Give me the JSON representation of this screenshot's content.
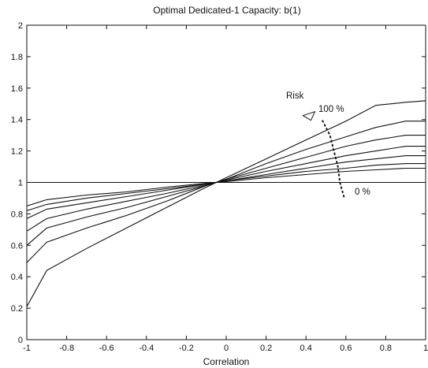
{
  "chart_data": {
    "type": "line",
    "title": "Optimal Dedicated-1 Capacity: b(1)",
    "xlabel": "Correlation",
    "ylabel": "",
    "xlim": [
      -1,
      1
    ],
    "ylim": [
      0,
      2
    ],
    "xticks": [
      -1,
      -0.8,
      -0.6,
      -0.4,
      -0.2,
      0,
      0.2,
      0.4,
      0.6,
      0.8,
      1
    ],
    "yticks": [
      0,
      0.2,
      0.4,
      0.6,
      0.8,
      1,
      1.2,
      1.4,
      1.6,
      1.8,
      2
    ],
    "xtick_labels": [
      "-1",
      "-0.8",
      "-0.6",
      "-0.4",
      "-0.2",
      "0",
      "0.2",
      "0.4",
      "0.6",
      "0.8",
      "1"
    ],
    "ytick_labels": [
      "0",
      "0.2",
      "0.4",
      "0.6",
      "0.8",
      "1",
      "1.2",
      "1.4",
      "1.6",
      "1.8",
      "2"
    ],
    "grid": false,
    "legend": "none",
    "line_color": "#111111",
    "x": [
      -1,
      -0.9,
      -0.7,
      -0.5,
      -0.3,
      -0.1,
      0,
      0.2,
      0.4,
      0.6,
      0.75,
      0.9,
      1
    ],
    "series": [
      {
        "values": [
          0.21,
          0.44,
          0.58,
          0.71,
          0.84,
          0.97,
          1.03,
          1.15,
          1.27,
          1.39,
          1.49,
          1.51,
          1.52
        ]
      },
      {
        "values": [
          0.49,
          0.62,
          0.71,
          0.79,
          0.88,
          0.98,
          1.02,
          1.12,
          1.21,
          1.29,
          1.35,
          1.39,
          1.39
        ]
      },
      {
        "values": [
          0.6,
          0.71,
          0.78,
          0.84,
          0.91,
          0.98,
          1.02,
          1.09,
          1.16,
          1.23,
          1.27,
          1.3,
          1.3
        ]
      },
      {
        "values": [
          0.69,
          0.77,
          0.83,
          0.88,
          0.93,
          0.985,
          1.015,
          1.07,
          1.12,
          1.17,
          1.2,
          1.23,
          1.23
        ]
      },
      {
        "values": [
          0.77,
          0.83,
          0.87,
          0.91,
          0.95,
          0.99,
          1.01,
          1.05,
          1.09,
          1.13,
          1.15,
          1.17,
          1.17
        ]
      },
      {
        "values": [
          0.82,
          0.86,
          0.9,
          0.93,
          0.96,
          0.99,
          1.01,
          1.04,
          1.07,
          1.09,
          1.11,
          1.12,
          1.12
        ]
      },
      {
        "values": [
          0.85,
          0.89,
          0.92,
          0.94,
          0.97,
          0.995,
          1.005,
          1.03,
          1.05,
          1.07,
          1.08,
          1.09,
          1.09
        ]
      },
      {
        "values": [
          1,
          1,
          1,
          1,
          1,
          1,
          1,
          1,
          1,
          1,
          1,
          1,
          1
        ]
      }
    ],
    "annotations": {
      "risk_label": "Risk",
      "high_label": "100 %",
      "low_label": "0 %",
      "risk_arrow_points": [
        [
          0.59,
          0.91
        ],
        [
          0.57,
          1.0
        ],
        [
          0.56,
          1.1
        ],
        [
          0.54,
          1.2
        ],
        [
          0.52,
          1.3
        ],
        [
          0.48,
          1.4
        ]
      ]
    }
  }
}
